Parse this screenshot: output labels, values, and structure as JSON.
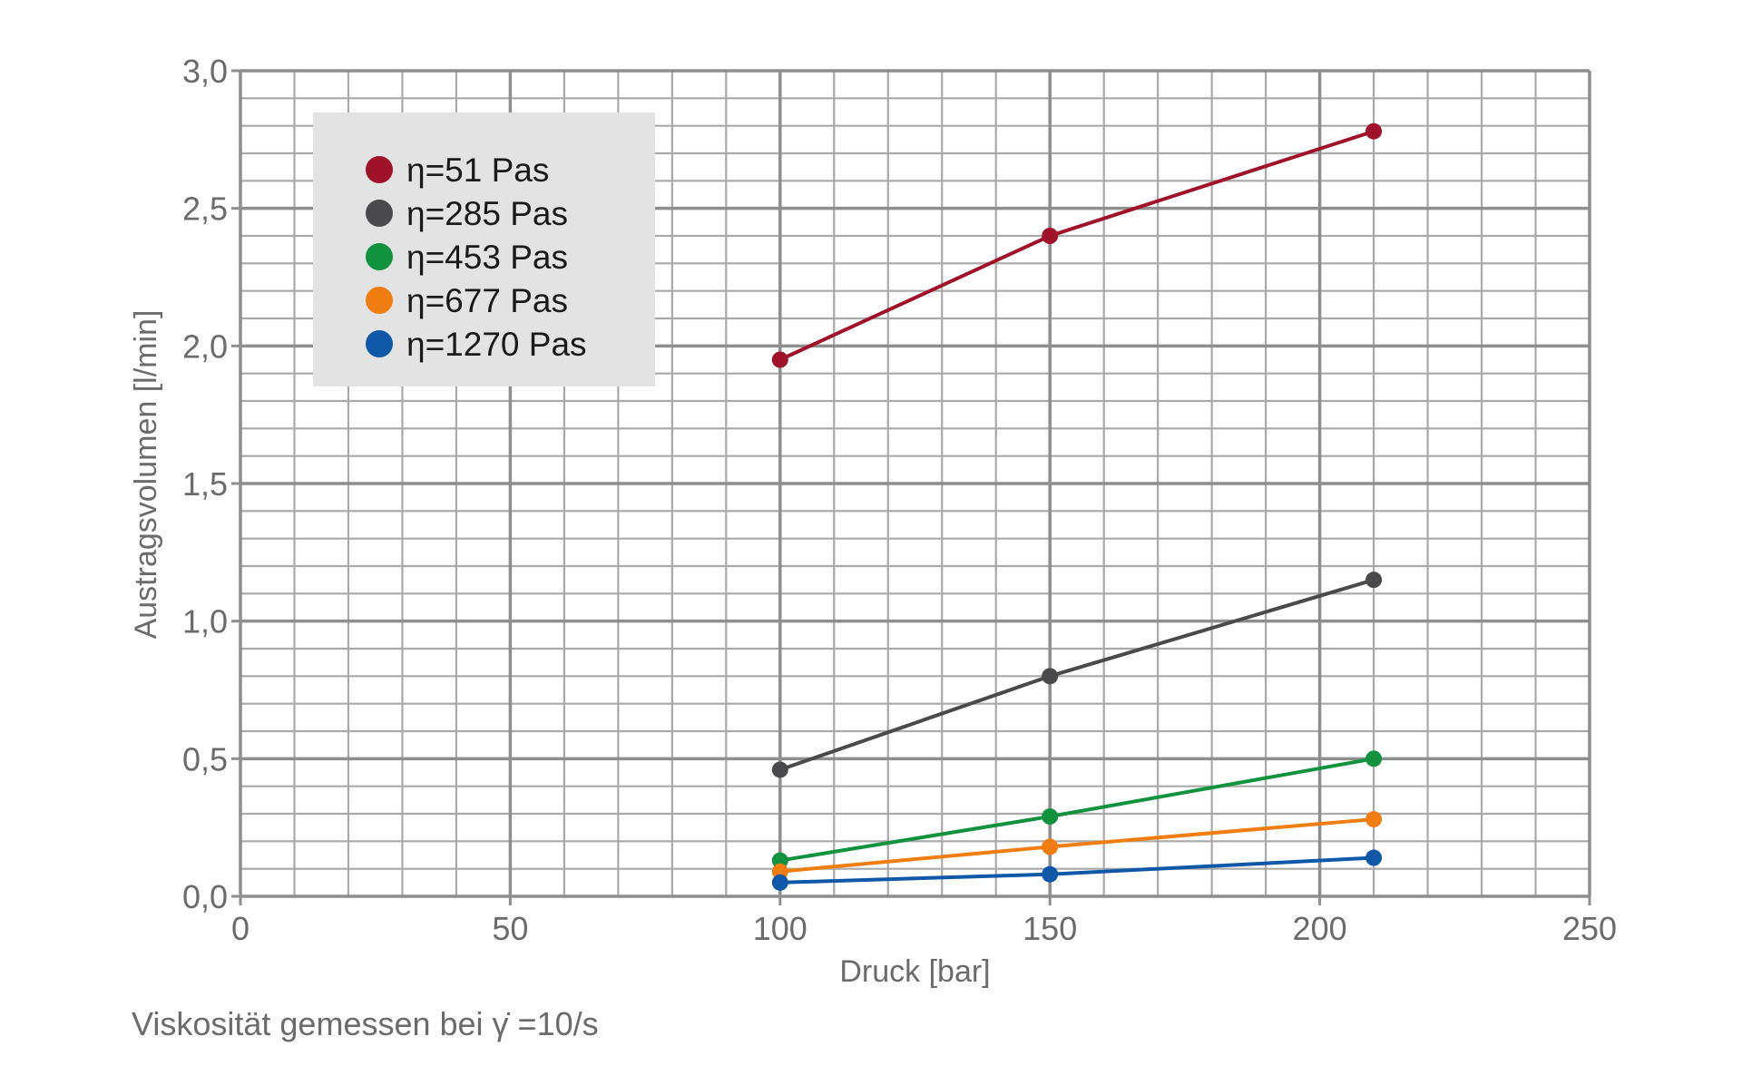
{
  "chart_data": {
    "type": "line",
    "title": "",
    "xlabel": "Druck [bar]",
    "ylabel": "Austragsvolumen [l/min]",
    "xlim": [
      0,
      250
    ],
    "ylim": [
      0,
      3.0
    ],
    "x_ticks": [
      0,
      50,
      100,
      150,
      200,
      250
    ],
    "x_tick_labels": [
      "0",
      "50",
      "100",
      "150",
      "200",
      "250"
    ],
    "y_ticks": [
      0,
      0.5,
      1.0,
      1.5,
      2.0,
      2.5,
      3.0
    ],
    "y_tick_labels": [
      "0,0",
      "0,5",
      "1,0",
      "1,5",
      "2,0",
      "2,5",
      "3,0"
    ],
    "x_minor_step": 10,
    "y_minor_step": 0.1,
    "grid": true,
    "legend_position": "top-left",
    "x": [
      100,
      150,
      210
    ],
    "series": [
      {
        "name": "η=51 Pas",
        "color": "#a0122a",
        "values": [
          1.95,
          2.4,
          2.78
        ]
      },
      {
        "name": "η=285 Pas",
        "color": "#4a4a4d",
        "values": [
          0.46,
          0.8,
          1.15
        ]
      },
      {
        "name": "η=453 Pas",
        "color": "#12923f",
        "values": [
          0.13,
          0.29,
          0.5
        ]
      },
      {
        "name": "η=677 Pas",
        "color": "#f07d12",
        "values": [
          0.09,
          0.18,
          0.28
        ]
      },
      {
        "name": "η=1270 Pas",
        "color": "#0f58a8",
        "values": [
          0.05,
          0.08,
          0.14
        ]
      }
    ]
  },
  "footnote": "Viskosität gemessen bei γ̇ =10/s"
}
